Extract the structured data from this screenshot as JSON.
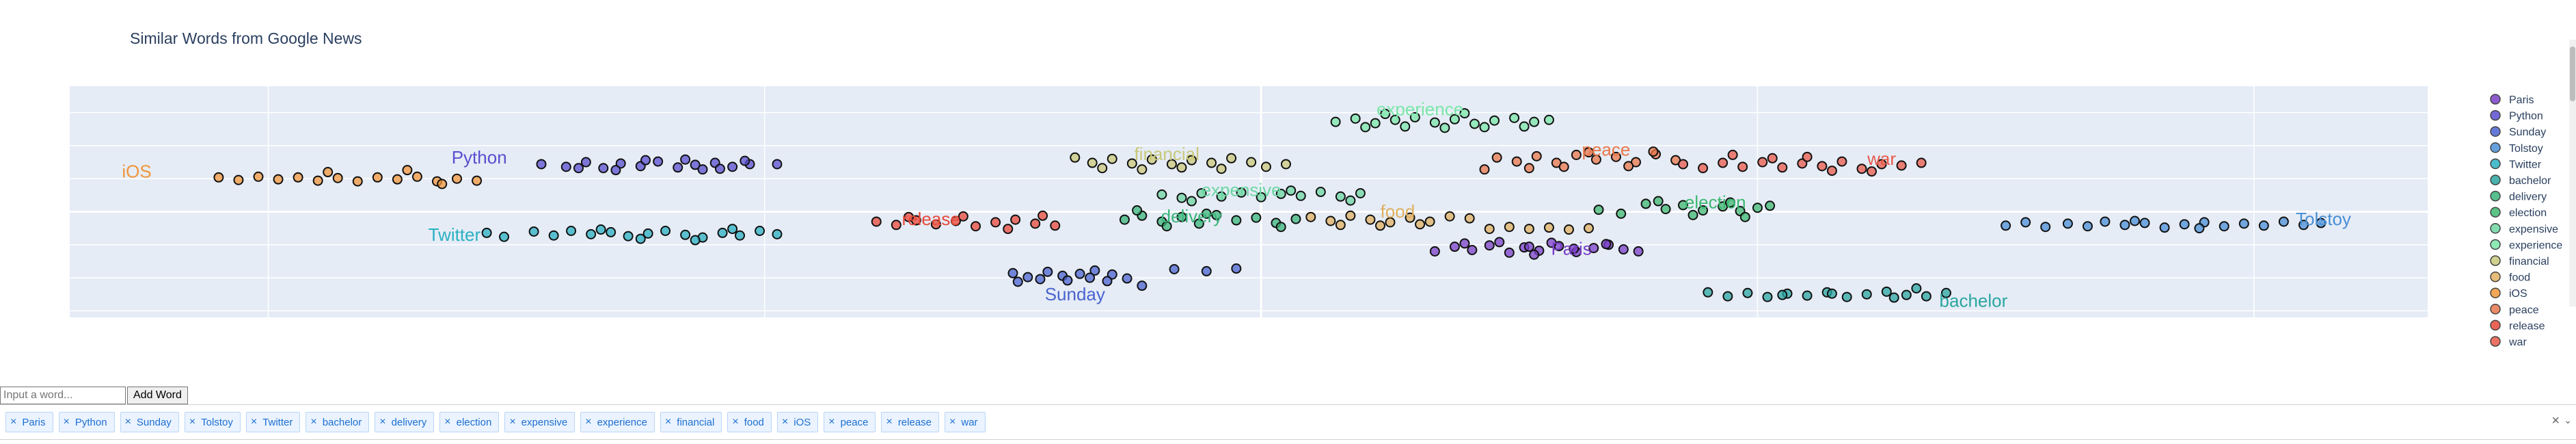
{
  "chart_data": {
    "type": "scatter",
    "title": "Similar Words from Google News",
    "xlim": [
      -48,
      47
    ],
    "ylim": [
      -16,
      19
    ],
    "grid": true,
    "legend": "right",
    "series": [
      {
        "name": "Paris",
        "color": "#7a3fc7",
        "label_pos": [
          12.5,
          -6.5
        ],
        "x": [
          7,
          7.8,
          8.5,
          9.2,
          10,
          10.6,
          11.2,
          12,
          12.7,
          13.4,
          14,
          14.6,
          15.2,
          8.2,
          9.6,
          10.8,
          11.7,
          12.6,
          13.9,
          11
        ],
        "y": [
          -6,
          -5.3,
          -5.8,
          -5.1,
          -6.2,
          -5.4,
          -5.9,
          -5.2,
          -6.1,
          -5.5,
          -5,
          -5.7,
          -6,
          -4.8,
          -4.6,
          -5.3,
          -4.7,
          -5.6,
          -4.9,
          -6.5
        ]
      },
      {
        "name": "Python",
        "color": "#5a4fcf",
        "label_pos": [
          -31.5,
          7.3
        ],
        "x": [
          -29,
          -28,
          -27.2,
          -26.5,
          -25.8,
          -25,
          -24.3,
          -23.5,
          -22.8,
          -22,
          -21.3,
          -20.6,
          -26,
          -24.8,
          -23.2,
          -21.8,
          -19.5,
          -27.5,
          -22.5,
          -20.8
        ],
        "y": [
          7.2,
          6.8,
          7.5,
          6.6,
          7.3,
          6.9,
          7.6,
          6.7,
          7.1,
          7.4,
          6.8,
          7.2,
          6.3,
          7.8,
          7.9,
          6.5,
          7.2,
          6.6,
          6.4,
          7.7
        ]
      },
      {
        "name": "Sunday",
        "color": "#4a63cf",
        "label_pos": [
          -7.5,
          -13.4
        ],
        "x": [
          -10,
          -9.4,
          -8.6,
          -8,
          -7.3,
          -6.7,
          -6,
          -9.8,
          -8.9,
          -7.8,
          -6.9,
          -6.2,
          -5.4,
          -4.8,
          -3.5,
          -2.2,
          -1
        ],
        "y": [
          -9.3,
          -9.9,
          -9.1,
          -9.7,
          -9.4,
          -8.9,
          -9.5,
          -10.6,
          -10.2,
          -10.4,
          -10,
          -10.5,
          -10.1,
          -11.2,
          -8.7,
          -9,
          -8.6
        ]
      },
      {
        "name": "Tolstoy",
        "color": "#4a8fd6",
        "label_pos": [
          42.8,
          -2
        ],
        "x": [
          30,
          30.8,
          31.6,
          32.5,
          33.3,
          34,
          34.8,
          35.6,
          36.4,
          37.2,
          38,
          38.8,
          39.6,
          40.4,
          41.2,
          42,
          42.7,
          35.2,
          37.8
        ],
        "y": [
          -2.1,
          -1.6,
          -2.3,
          -1.8,
          -2.2,
          -1.5,
          -2,
          -1.7,
          -2.4,
          -1.9,
          -1.6,
          -2.2,
          -1.8,
          -2.1,
          -1.5,
          -2,
          -1.7,
          -1.4,
          -2.5
        ]
      },
      {
        "name": "Twitter",
        "color": "#2ab0c2",
        "label_pos": [
          -32.5,
          -4.4
        ],
        "x": [
          -31.2,
          -30.5,
          -29.3,
          -28.5,
          -27.8,
          -27,
          -26.2,
          -25.5,
          -24.7,
          -24,
          -23.2,
          -22.5,
          -21.7,
          -21,
          -20.2,
          -19.5,
          -25,
          -22.8,
          -21.3,
          -26.6
        ],
        "y": [
          -3.2,
          -3.8,
          -3,
          -3.6,
          -2.9,
          -3.4,
          -3.1,
          -3.7,
          -3.3,
          -2.9,
          -3.5,
          -3.9,
          -3.2,
          -3.6,
          -2.9,
          -3.4,
          -4.1,
          -4.3,
          -2.6,
          -2.7
        ]
      },
      {
        "name": "bachelor",
        "color": "#2aa6a0",
        "label_pos": [
          28.7,
          -14.4
        ],
        "x": [
          18,
          18.8,
          19.6,
          20.4,
          21.2,
          22,
          22.8,
          23.6,
          24.4,
          25.2,
          26,
          26.8,
          27.6,
          21,
          23,
          25.5,
          26.4
        ],
        "y": [
          -12.2,
          -12.8,
          -12.3,
          -12.9,
          -12.4,
          -12.7,
          -12.2,
          -12.9,
          -12.5,
          -12.1,
          -12.6,
          -12.8,
          -12.3,
          -12.6,
          -12.4,
          -13,
          -11.6
        ]
      },
      {
        "name": "delivery",
        "color": "#3ab57a",
        "label_pos": [
          -2.8,
          -1.6
        ],
        "x": [
          -5.5,
          -4.8,
          -4,
          -3.2,
          -2.5,
          -1.8,
          -1,
          -0.2,
          0.6,
          1.4,
          -3.8,
          -2.2,
          0.8,
          -5
        ],
        "y": [
          -1.2,
          -0.6,
          -1.5,
          -0.8,
          -1.8,
          -0.5,
          -1.3,
          -0.9,
          -1.7,
          -1.1,
          -2.2,
          -0.3,
          -2.3,
          0.2
        ]
      },
      {
        "name": "election",
        "color": "#3db870",
        "label_pos": [
          18.3,
          0.5
        ],
        "x": [
          15.5,
          16.3,
          17,
          17.8,
          18.6,
          19.3,
          20,
          14.5,
          16,
          17.4,
          18.9,
          20.5,
          13.6,
          19.5
        ],
        "y": [
          1.2,
          0.4,
          1,
          0.2,
          0.8,
          0.1,
          0.6,
          -0.3,
          1.6,
          -0.5,
          1.4,
          0.9,
          0.3,
          -0.8
        ]
      },
      {
        "name": "expensive",
        "color": "#6cd6a2",
        "label_pos": [
          -0.8,
          2.4
        ],
        "x": [
          -4,
          -3.2,
          -2.4,
          -1.6,
          -0.8,
          0,
          0.8,
          1.6,
          2.4,
          3.2,
          4,
          -2.8,
          1.2,
          3.6
        ],
        "y": [
          2.6,
          2.1,
          2.8,
          2.3,
          2.9,
          2.2,
          2.7,
          2.4,
          3,
          2.3,
          2.8,
          1.6,
          3.2,
          1.7
        ]
      },
      {
        "name": "experience",
        "color": "#7ae6a8",
        "label_pos": [
          6.4,
          14.6
        ],
        "x": [
          3,
          3.8,
          4.6,
          5.4,
          6.2,
          7,
          7.8,
          8.6,
          9.4,
          10.2,
          11,
          4.2,
          5.8,
          7.4,
          9,
          10.6,
          5,
          8.2,
          11.6
        ],
        "y": [
          13.6,
          14.1,
          13.4,
          13.9,
          14.3,
          13.5,
          14,
          13.3,
          13.8,
          14.2,
          13.6,
          12.8,
          12.9,
          12.7,
          12.8,
          12.9,
          14.8,
          14.9,
          13.9
        ]
      },
      {
        "name": "financial",
        "color": "#c9c87a",
        "label_pos": [
          -3.8,
          7.8
        ],
        "x": [
          -7.5,
          -6.8,
          -6,
          -5.2,
          -4.4,
          -3.6,
          -2.8,
          -2,
          -1.2,
          -0.4,
          -6.4,
          -4.8,
          -3.2,
          -1.6,
          0.2,
          1
        ],
        "y": [
          8.2,
          7.4,
          8,
          7.3,
          7.9,
          7.2,
          7.8,
          7.4,
          8.1,
          7.5,
          6.6,
          6.4,
          6.7,
          6.5,
          6.8,
          7.2
        ]
      },
      {
        "name": "food",
        "color": "#e0b060",
        "label_pos": [
          5.5,
          -0.9
        ],
        "x": [
          2,
          2.8,
          3.6,
          4.4,
          5.2,
          6,
          6.8,
          7.6,
          3.2,
          4.8,
          6.4,
          8.4,
          9.2,
          10,
          10.8,
          11.6,
          12.4,
          13.2
        ],
        "y": [
          -0.8,
          -1.4,
          -0.6,
          -1.2,
          -1.6,
          -0.9,
          -1.5,
          -0.7,
          -2,
          -2.1,
          -1.9,
          -1,
          -2.6,
          -2.3,
          -2.6,
          -2.4,
          -2.7,
          -2.5
        ]
      },
      {
        "name": "iOS",
        "color": "#f0963a",
        "label_pos": [
          -45.3,
          5.2
        ],
        "x": [
          -42,
          -41.2,
          -40.4,
          -39.6,
          -38.8,
          -38,
          -37.2,
          -36.4,
          -35.6,
          -34.8,
          -34,
          -33.2,
          -32.4,
          -31.6,
          -37.6,
          -34.4,
          -33
        ],
        "y": [
          5.2,
          4.8,
          5.3,
          4.9,
          5.2,
          4.7,
          5.1,
          4.6,
          5.2,
          4.9,
          5.3,
          4.6,
          5,
          4.7,
          6,
          6.3,
          4.2
        ]
      },
      {
        "name": "peace",
        "color": "#e8774a",
        "label_pos": [
          13.9,
          8.5
        ],
        "x": [
          9.5,
          10.3,
          11.1,
          11.9,
          12.7,
          13.5,
          14.3,
          15.1,
          15.9,
          16.7,
          12.2,
          14.8,
          10.8,
          13.2,
          15.8,
          9
        ],
        "y": [
          8.2,
          7.6,
          8.4,
          7.4,
          8.6,
          7.9,
          8.3,
          7.5,
          8.7,
          7.8,
          6.8,
          6.9,
          6.6,
          9,
          9.1,
          6.4
        ]
      },
      {
        "name": "release",
        "color": "#e84a3a",
        "label_pos": [
          -13.3,
          -2
        ],
        "x": [
          -15.5,
          -14.7,
          -13.9,
          -13.1,
          -12.3,
          -11.5,
          -10.7,
          -9.9,
          -9.1,
          -8.3,
          -14.2,
          -12,
          -10.2,
          -8.8
        ],
        "y": [
          -1.5,
          -2,
          -1.3,
          -1.9,
          -1.4,
          -2.2,
          -1.6,
          -1.2,
          -1.8,
          -2.1,
          -0.8,
          -0.7,
          -2.6,
          -0.6
        ]
      },
      {
        "name": "war",
        "color": "#e85a4a",
        "label_pos": [
          25,
          7.1
        ],
        "x": [
          17,
          17.8,
          18.6,
          19.4,
          20.2,
          21,
          21.8,
          22.6,
          23.4,
          24.2,
          25,
          25.8,
          26.6,
          20.6,
          23,
          19,
          22,
          24.6
        ],
        "y": [
          7.2,
          6.6,
          7.4,
          6.8,
          7.5,
          6.7,
          7.3,
          6.9,
          7.6,
          6.5,
          7.2,
          7,
          7.4,
          8.1,
          6.2,
          8.6,
          8.3,
          6.1
        ]
      }
    ]
  },
  "controls": {
    "input_placeholder": "Input a word...",
    "add_label": "Add Word",
    "clear_label": "×",
    "toggle_label": "⌄"
  }
}
